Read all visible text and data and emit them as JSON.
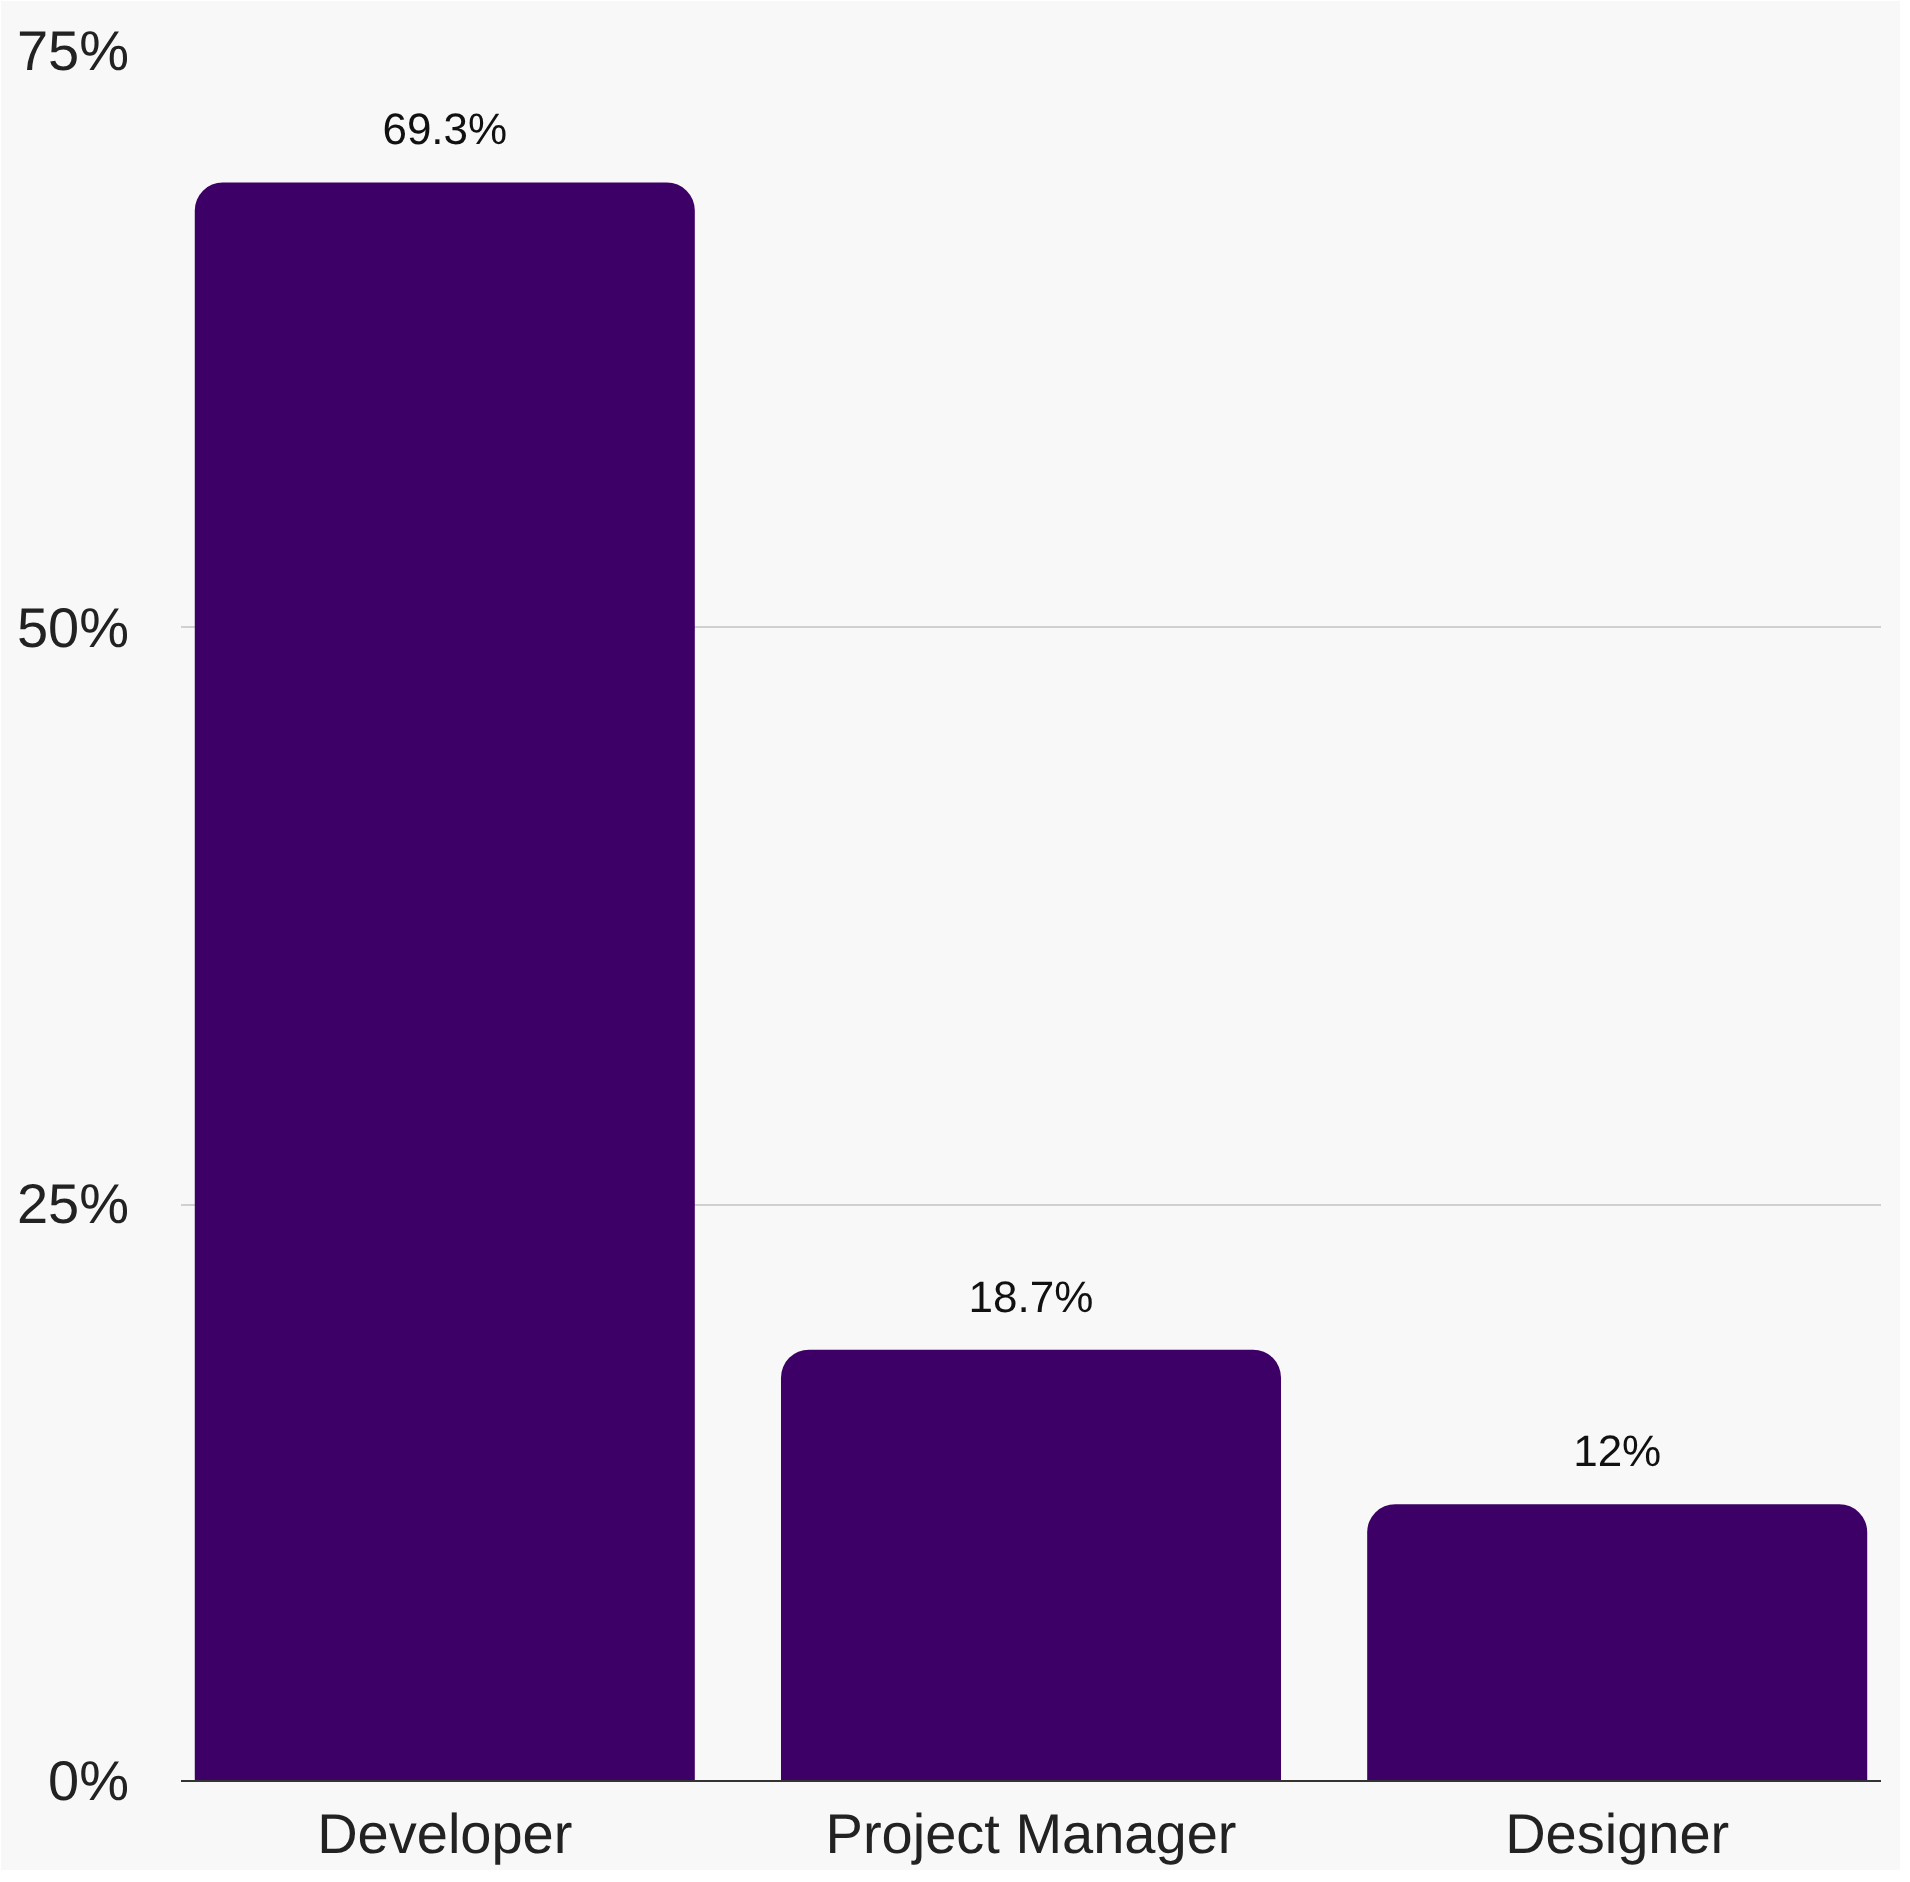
{
  "chart_data": {
    "type": "bar",
    "categories": [
      "Developer",
      "Project Manager",
      "Designer"
    ],
    "values": [
      69.3,
      18.7,
      12
    ],
    "value_labels": [
      "69.3%",
      "18.7%",
      "12%"
    ],
    "color": "#3d0066",
    "ylim": [
      0,
      75
    ],
    "yticks": [
      {
        "value": 0,
        "label": "0%"
      },
      {
        "value": 25,
        "label": "25%"
      },
      {
        "value": 50,
        "label": "50%"
      },
      {
        "value": 75,
        "label": "75%"
      }
    ],
    "grid": "y"
  }
}
